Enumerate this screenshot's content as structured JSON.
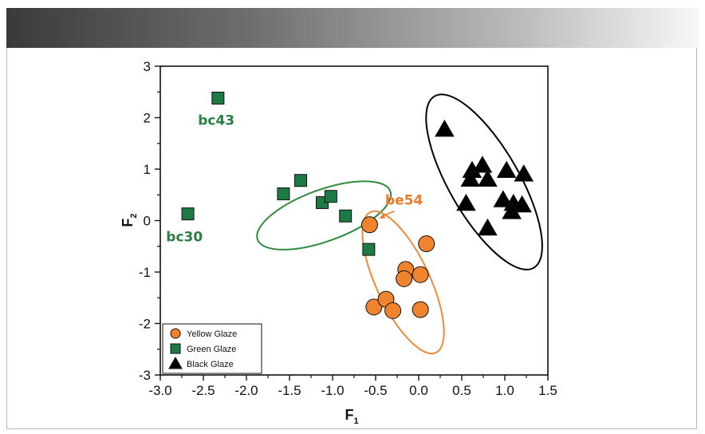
{
  "colors": {
    "yellow_fill": "#F0832D",
    "green_fill": "#1E7A45",
    "black_fill": "#000000",
    "yellow_ellipse": "#EB8A3A",
    "green_ellipse": "#2E8B3D",
    "black_ellipse": "#000000",
    "green_text": "#2A7F45",
    "orange_text": "#EB7A2B"
  },
  "chart_data": {
    "type": "scatter",
    "xlabel": "F",
    "xlabel_sub": "1",
    "ylabel": "F",
    "ylabel_sub": "2",
    "xlim": [
      -3.0,
      1.5
    ],
    "ylim": [
      -3,
      3
    ],
    "x_ticks": [
      -3.0,
      -2.5,
      -2.0,
      -1.5,
      -1.0,
      -0.5,
      0.0,
      0.5,
      1.0,
      1.5
    ],
    "x_tick_labels": [
      "-3.0",
      "-2.5",
      "-2.0",
      "-1.5",
      "-1.0",
      "-0.5",
      "0.0",
      "0.5",
      "1.0",
      "1.5"
    ],
    "y_ticks": [
      -3,
      -2,
      -1,
      0,
      1,
      2,
      3
    ],
    "y_tick_labels": [
      "-3",
      "-2",
      "-1",
      "0",
      "1",
      "2",
      "3"
    ],
    "grid": false,
    "legend_position": "bottom-left",
    "series": [
      {
        "name": "Yellow Glaze",
        "marker": "circle",
        "color": "#F0832D",
        "points": [
          {
            "x": -0.57,
            "y": -0.08
          },
          {
            "x": 0.09,
            "y": -0.45
          },
          {
            "x": -0.15,
            "y": -0.95
          },
          {
            "x": -0.17,
            "y": -1.13
          },
          {
            "x": 0.02,
            "y": -1.05
          },
          {
            "x": -0.52,
            "y": -1.68
          },
          {
            "x": -0.38,
            "y": -1.53
          },
          {
            "x": -0.3,
            "y": -1.75
          },
          {
            "x": 0.02,
            "y": -1.73
          }
        ]
      },
      {
        "name": "Green Glaze",
        "marker": "square",
        "color": "#1E7A45",
        "points": [
          {
            "x": -2.33,
            "y": 2.38
          },
          {
            "x": -2.68,
            "y": 0.13
          },
          {
            "x": -1.57,
            "y": 0.52
          },
          {
            "x": -1.37,
            "y": 0.78
          },
          {
            "x": -1.12,
            "y": 0.35
          },
          {
            "x": -1.02,
            "y": 0.47
          },
          {
            "x": -0.85,
            "y": 0.09
          },
          {
            "x": -0.58,
            "y": -0.56
          }
        ]
      },
      {
        "name": "Black Glaze",
        "marker": "triangle",
        "color": "#000000",
        "points": [
          {
            "x": 0.3,
            "y": 1.77
          },
          {
            "x": 0.62,
            "y": 0.97
          },
          {
            "x": 0.74,
            "y": 1.07
          },
          {
            "x": 1.02,
            "y": 0.97
          },
          {
            "x": 1.22,
            "y": 0.9
          },
          {
            "x": 0.6,
            "y": 0.8
          },
          {
            "x": 0.8,
            "y": 0.8
          },
          {
            "x": 0.55,
            "y": 0.33
          },
          {
            "x": 0.98,
            "y": 0.4
          },
          {
            "x": 1.1,
            "y": 0.33
          },
          {
            "x": 1.2,
            "y": 0.3
          },
          {
            "x": 1.08,
            "y": 0.17
          },
          {
            "x": 0.8,
            "y": -0.15
          }
        ]
      }
    ],
    "annotations": [
      {
        "text": "bc43",
        "x": -2.35,
        "y": 1.95,
        "color": "#2A7F45"
      },
      {
        "text": "bc30",
        "x": -2.72,
        "y": -0.31,
        "color": "#2A7F45"
      },
      {
        "text": "be54",
        "x": -0.17,
        "y": 0.4,
        "color": "#EB7A2B",
        "arrow_to": {
          "x": -0.46,
          "y": 0.04
        }
      }
    ],
    "group_ellipses": [
      {
        "series": "Green Glaze",
        "cx": -1.1,
        "cy": 0.1,
        "rx": 0.82,
        "ry": 0.5,
        "angle_deg": 20,
        "color": "#2E8B3D"
      },
      {
        "series": "Yellow Glaze",
        "cx": -0.18,
        "cy": -1.2,
        "rx": 0.9,
        "ry": 0.52,
        "angle_deg": -65,
        "color": "#EB8A3A"
      },
      {
        "series": "Black Glaze",
        "cx": 0.76,
        "cy": 0.75,
        "rx": 1.15,
        "ry": 0.68,
        "angle_deg": -60,
        "color": "#000000"
      }
    ]
  }
}
